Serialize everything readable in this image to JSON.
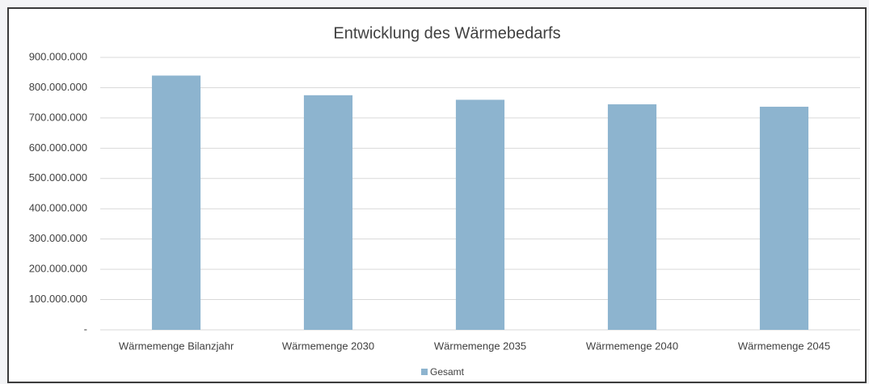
{
  "chart_data": {
    "type": "bar",
    "title": "Entwicklung des Wärmebedarfs",
    "categories": [
      "Wärmemenge Bilanzjahr",
      "Wärmemenge 2030",
      "Wärmemenge 2035",
      "Wärmemenge 2040",
      "Wärmemenge 2045"
    ],
    "series": [
      {
        "name": "Gesamt",
        "color": "#8db4cf",
        "values": [
          840000000,
          775000000,
          760000000,
          745000000,
          737000000
        ]
      }
    ],
    "ylim": [
      0,
      900000000
    ],
    "yticks": [
      {
        "value": 0,
        "label": "-"
      },
      {
        "value": 100000000,
        "label": "100.000.000"
      },
      {
        "value": 200000000,
        "label": "200.000.000"
      },
      {
        "value": 300000000,
        "label": "300.000.000"
      },
      {
        "value": 400000000,
        "label": "400.000.000"
      },
      {
        "value": 500000000,
        "label": "500.000.000"
      },
      {
        "value": 600000000,
        "label": "600.000.000"
      },
      {
        "value": 700000000,
        "label": "700.000.000"
      },
      {
        "value": 800000000,
        "label": "800.000.000"
      },
      {
        "value": 900000000,
        "label": "900.000.000"
      }
    ],
    "grid": true,
    "legend": "bottom"
  }
}
